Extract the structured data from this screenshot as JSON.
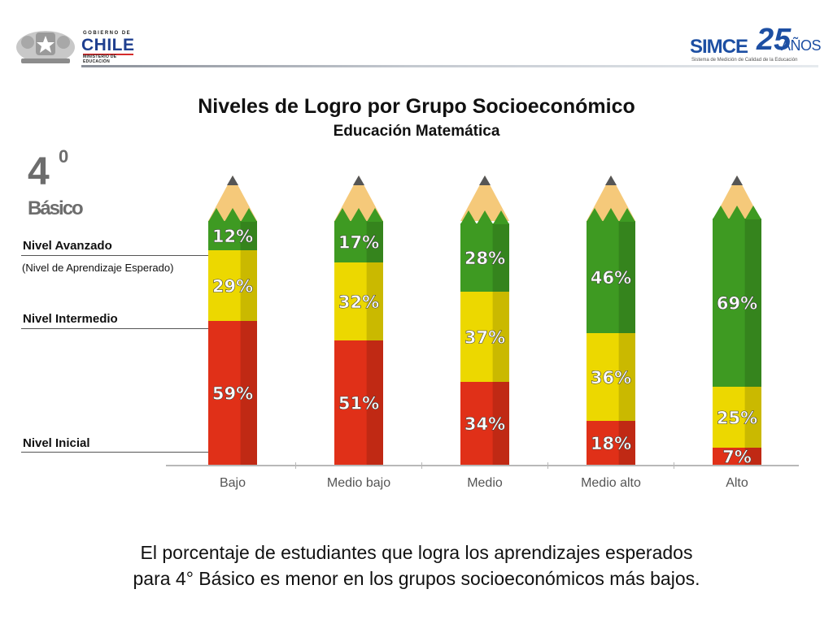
{
  "header": {
    "gov_small": "GOBIERNO DE",
    "gov_big": "CHILE",
    "gov_ministry": "MINISTERIO DE EDUCACIÓN",
    "simce_word": "SIMCE",
    "simce_num": "25",
    "simce_anos": "AÑOS",
    "simce_tagline": "Sistema de Medición de Calidad de la Educación"
  },
  "title": "Niveles de Logro por Grupo Socioeconómico",
  "subtitle": "Educación Matemática",
  "grade": {
    "number": "4",
    "sup": "0",
    "word": "Básico"
  },
  "levels": {
    "avanzado": "Nivel Avanzado",
    "avanzado_note": "(Nivel de Aprendizaje Esperado)",
    "intermedio": "Nivel Intermedio",
    "inicial": "Nivel Inicial"
  },
  "caption_line1": "El porcentaje de estudiantes que logra los aprendizajes esperados",
  "caption_line2": "para 4° Básico es menor en los grupos socioeconómicos más bajos.",
  "colors": {
    "inicial": "#e03018",
    "intermedio": "#ecd800",
    "avanzado": "#3e9a22",
    "wood": "#f5c97a",
    "tip": "#555555"
  },
  "chart_data": {
    "type": "bar",
    "stacked": true,
    "unit": "%",
    "categories": [
      "Bajo",
      "Medio bajo",
      "Medio",
      "Medio alto",
      "Alto"
    ],
    "series": [
      {
        "name": "Nivel Inicial",
        "values": [
          59,
          51,
          34,
          18,
          7
        ]
      },
      {
        "name": "Nivel Intermedio",
        "values": [
          29,
          32,
          37,
          36,
          25
        ]
      },
      {
        "name": "Nivel Avanzado",
        "values": [
          12,
          17,
          28,
          46,
          69
        ]
      }
    ],
    "data_labels": [
      [
        "59%",
        "51%",
        "34%",
        "18%",
        "7%"
      ],
      [
        "29%",
        "32%",
        "37%",
        "36%",
        "25%"
      ],
      [
        "12%",
        "17%",
        "28%",
        "46%",
        "69%"
      ]
    ],
    "ylim": [
      0,
      100
    ]
  }
}
